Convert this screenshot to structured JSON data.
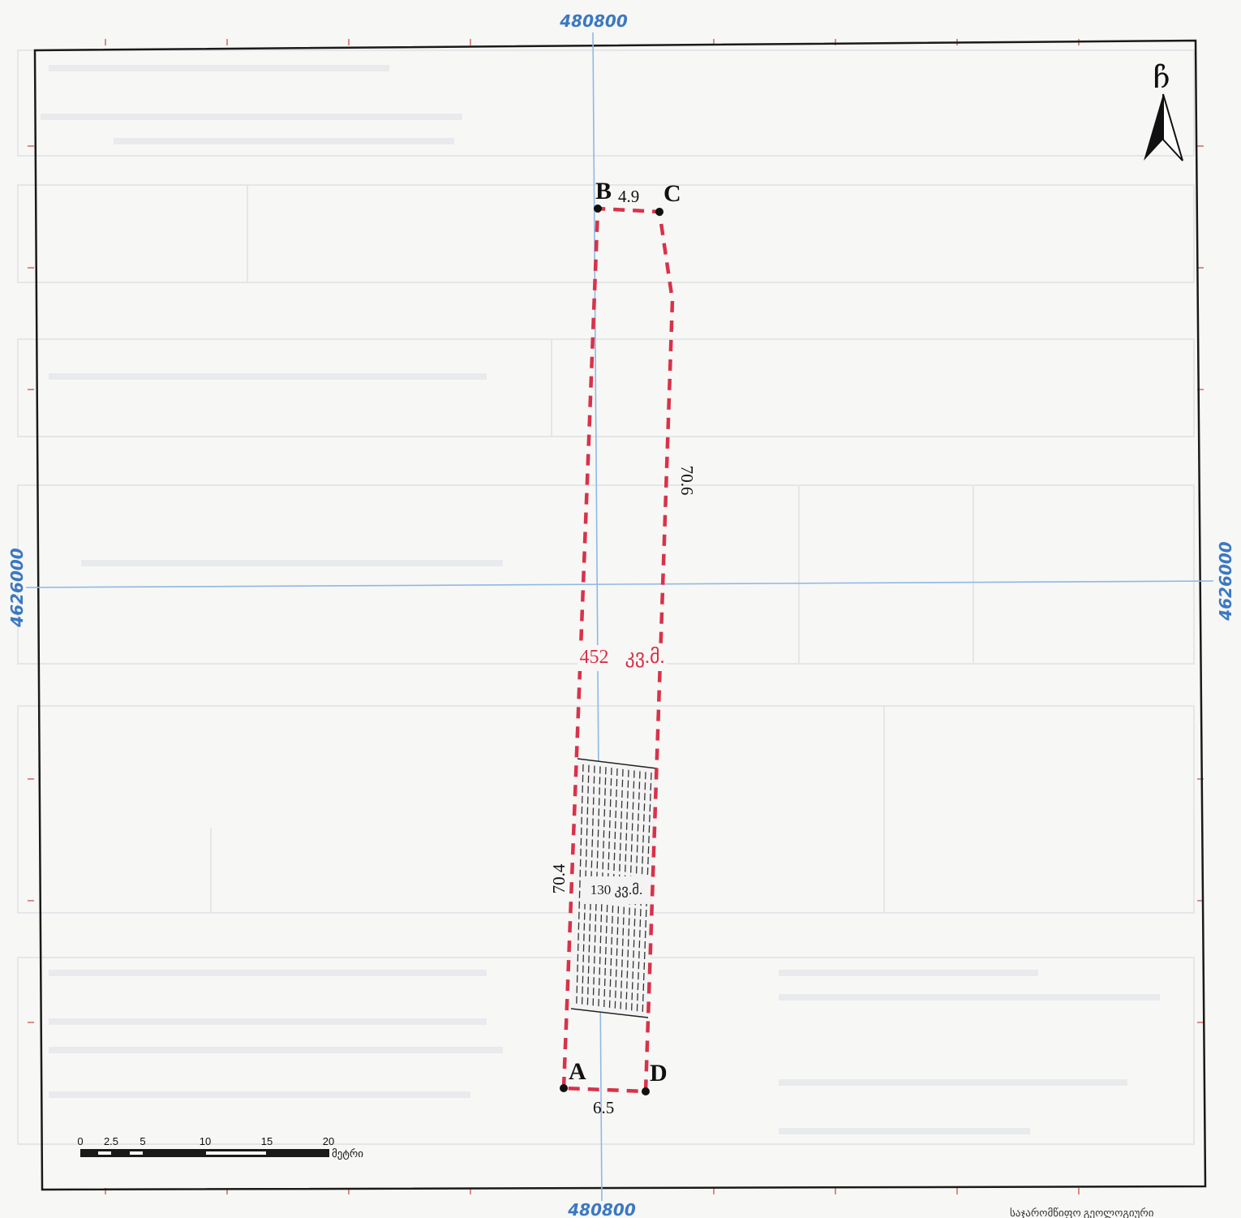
{
  "grid": {
    "x_label_top": "480800",
    "x_label_bottom": "480800",
    "y_label_left": "4626000",
    "y_label_right": "4626000",
    "line_color": "#8fb8e6",
    "label_color": "#3b78c2"
  },
  "north_arrow": {
    "letter": "ჩ",
    "icon": "north-arrow-icon"
  },
  "parcel": {
    "points": {
      "a": "A",
      "b": "B",
      "c": "C",
      "d": "D"
    },
    "dims": {
      "bc": "4.9",
      "cd": "70.6",
      "ab": "70.4",
      "ad": "6.5"
    },
    "area_total": "452 კვ.მ.",
    "outline_color": "#d8324a"
  },
  "hatched_zone": {
    "area": "130 კვ.მ."
  },
  "scale_bar": {
    "ticks": [
      "0",
      "2.5",
      "5",
      "10",
      "15",
      "20"
    ],
    "unit": "მეტრი"
  },
  "footer": {
    "text": "საჯარომწიფო გეოლოგიური"
  }
}
